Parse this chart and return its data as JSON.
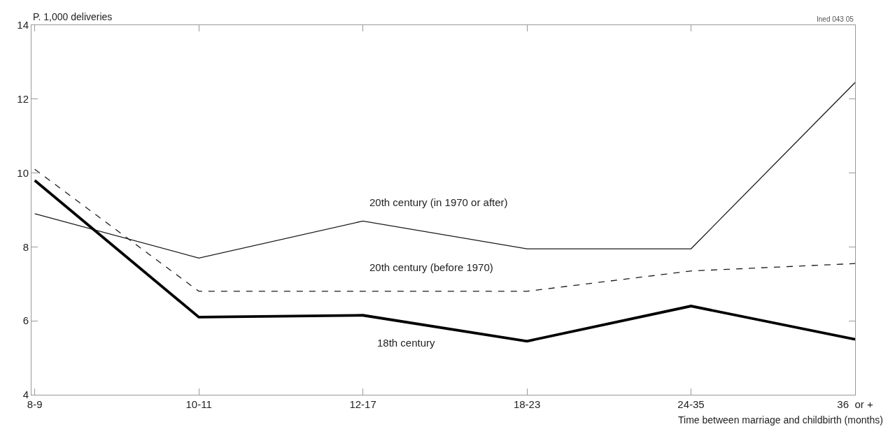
{
  "chart_data": {
    "type": "line",
    "ylabel": "P. 1,000 deliveries",
    "xlabel": "Time between marriage and childbirth (months)",
    "annotations": [
      "Ined 043 05"
    ],
    "categories": [
      "8-9",
      "10-11",
      "12-17",
      "18-23",
      "24-35",
      "36  or +"
    ],
    "series": [
      {
        "name": "20th century (in 1970 or after)",
        "color": "#1a1a1a",
        "line_style": "solid",
        "values": [
          8.9,
          7.7,
          8.7,
          7.95,
          7.95,
          12.45
        ]
      },
      {
        "name": "20th century (before 1970)",
        "color": "#1a1a1a",
        "line_style": "dashed",
        "values": [
          10.1,
          6.8,
          6.8,
          6.8,
          7.35,
          7.55
        ]
      },
      {
        "name": "18th century",
        "color": "#000000",
        "line_style": "solid",
        "values": [
          9.8,
          6.1,
          6.15,
          5.45,
          6.4,
          5.5
        ]
      }
    ],
    "ylim": [
      4,
      14
    ],
    "yticks": [
      4,
      6,
      8,
      10,
      12,
      14
    ],
    "grid": false,
    "legend": false,
    "marker": "none"
  }
}
